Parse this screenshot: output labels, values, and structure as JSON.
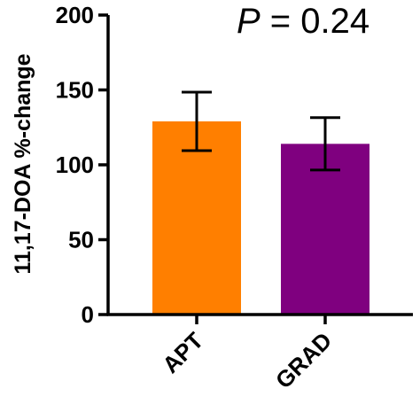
{
  "chart_data": {
    "type": "bar",
    "categories": [
      "APT",
      "GRAD"
    ],
    "values": [
      129,
      114
    ],
    "errors": [
      19.5,
      17.5
    ],
    "colors": [
      "#FF7F00",
      "#7F007F"
    ],
    "ylabel": "11,17-DOA %-change",
    "xlabel": "",
    "title": "",
    "ylim": [
      0,
      200
    ],
    "yticks": [
      0,
      50,
      100,
      150,
      200
    ],
    "annotation": {
      "label": "P",
      "text": " = 0.24"
    },
    "grid": false,
    "legend": "none"
  }
}
